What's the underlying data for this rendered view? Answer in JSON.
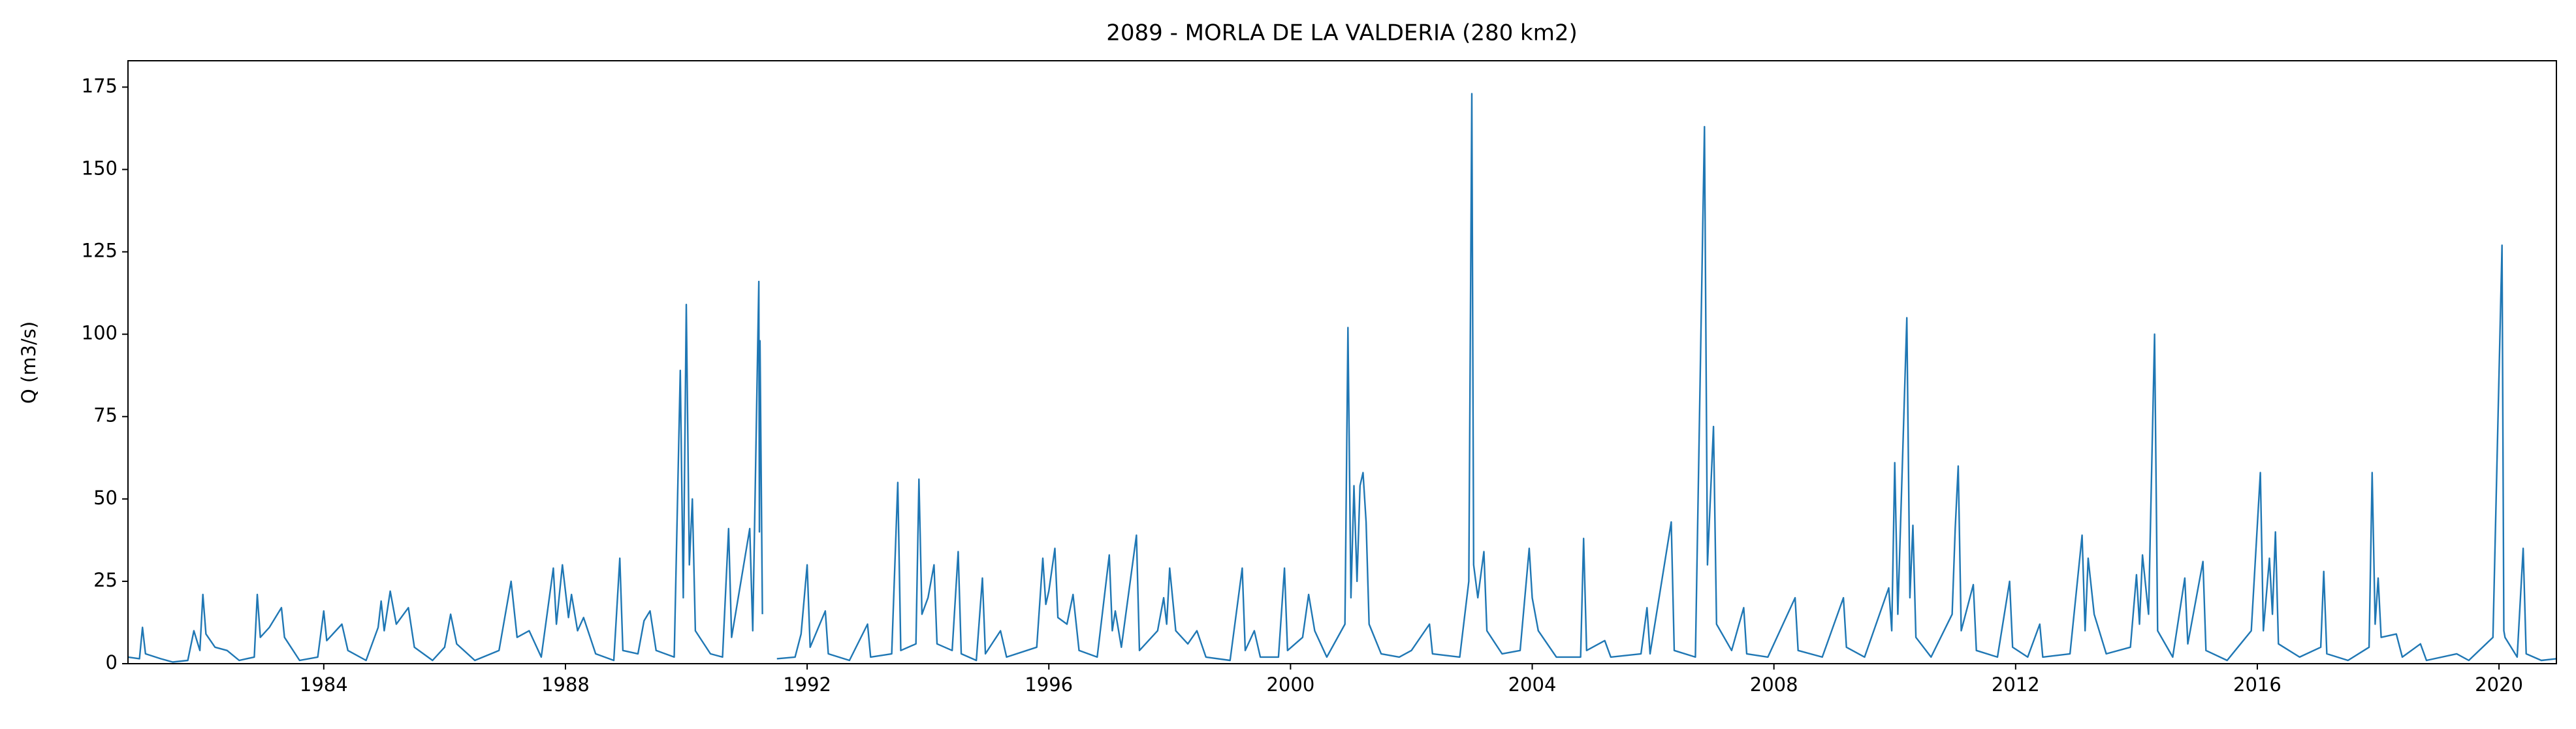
{
  "chart_data": {
    "type": "line",
    "title": "2089 - MORLA DE LA VALDERIA (280 km2)",
    "y_label": "Q (m3/s)",
    "color": "#1f77b4",
    "xlim": [
      1980.76,
      2020.95
    ],
    "xticks": [
      1984,
      1988,
      1992,
      1996,
      2000,
      2004,
      2008,
      2012,
      2016,
      2020
    ],
    "ylim": [
      0,
      183
    ],
    "yticks": [
      0,
      25,
      50,
      75,
      100,
      125,
      150,
      175
    ],
    "x": [
      1980.76,
      1980.95,
      1981.0,
      1981.05,
      1981.3,
      1981.5,
      1981.75,
      1981.85,
      1981.95,
      1982.0,
      1982.05,
      1982.2,
      1982.4,
      1982.6,
      1982.85,
      1982.9,
      1982.95,
      1983.1,
      1983.3,
      1983.35,
      1983.6,
      1983.9,
      1984.0,
      1984.05,
      1984.3,
      1984.4,
      1984.7,
      1984.9,
      1984.95,
      1985.0,
      1985.1,
      1985.2,
      1985.4,
      1985.5,
      1985.8,
      1986.0,
      1986.1,
      1986.2,
      1986.5,
      1986.9,
      1987.1,
      1987.2,
      1987.4,
      1987.6,
      1987.8,
      1987.85,
      1987.95,
      1988.05,
      1988.1,
      1988.2,
      1988.3,
      1988.5,
      1988.8,
      1988.9,
      1988.95,
      1989.2,
      1989.3,
      1989.4,
      1989.5,
      1989.8,
      1989.9,
      1989.95,
      1990.0,
      1990.05,
      1990.1,
      1990.15,
      1990.4,
      1990.6,
      1990.7,
      1990.75,
      1991.05,
      1991.1,
      1991.2,
      1991.21,
      1991.22,
      1991.26,
      1991.3,
      1991.5,
      1991.8,
      1991.9,
      1992.0,
      1992.05,
      1992.3,
      1992.35,
      1992.7,
      1993.0,
      1993.05,
      1993.4,
      1993.5,
      1993.55,
      1993.8,
      1993.85,
      1993.9,
      1994.0,
      1994.1,
      1994.15,
      1994.4,
      1994.5,
      1994.55,
      1994.8,
      1994.9,
      1994.95,
      1995.2,
      1995.3,
      1995.8,
      1995.9,
      1995.95,
      1996.0,
      1996.1,
      1996.15,
      1996.3,
      1996.4,
      1996.5,
      1996.8,
      1997.0,
      1997.05,
      1997.1,
      1997.2,
      1997.45,
      1997.5,
      1997.8,
      1997.9,
      1997.95,
      1998.0,
      1998.1,
      1998.3,
      1998.45,
      1998.6,
      1999.0,
      1999.2,
      1999.25,
      1999.4,
      1999.5,
      1999.8,
      1999.9,
      1999.95,
      2000.2,
      2000.3,
      2000.4,
      2000.6,
      2000.9,
      2000.95,
      2001.0,
      2001.05,
      2001.1,
      2001.15,
      2001.2,
      2001.25,
      2001.3,
      2001.5,
      2001.8,
      2002.0,
      2002.3,
      2002.35,
      2002.8,
      2002.95,
      2003.0,
      2003.03,
      2003.1,
      2003.2,
      2003.25,
      2003.5,
      2003.8,
      2003.95,
      2004.0,
      2004.1,
      2004.4,
      2004.8,
      2004.85,
      2004.9,
      2005.2,
      2005.3,
      2005.8,
      2005.9,
      2005.95,
      2006.3,
      2006.35,
      2006.7,
      2006.85,
      2006.9,
      2007.0,
      2007.05,
      2007.3,
      2007.5,
      2007.55,
      2007.9,
      2008.35,
      2008.4,
      2008.8,
      2009.15,
      2009.2,
      2009.5,
      2009.9,
      2009.95,
      2010.0,
      2010.05,
      2010.2,
      2010.25,
      2010.3,
      2010.35,
      2010.6,
      2010.95,
      2011.0,
      2011.05,
      2011.1,
      2011.3,
      2011.35,
      2011.7,
      2011.9,
      2011.95,
      2012.2,
      2012.4,
      2012.45,
      2012.9,
      2013.1,
      2013.15,
      2013.2,
      2013.3,
      2013.5,
      2013.9,
      2014.0,
      2014.05,
      2014.1,
      2014.2,
      2014.3,
      2014.35,
      2014.6,
      2014.8,
      2014.85,
      2015.1,
      2015.15,
      2015.5,
      2015.9,
      2016.05,
      2016.1,
      2016.2,
      2016.25,
      2016.3,
      2016.35,
      2016.7,
      2017.05,
      2017.1,
      2017.15,
      2017.5,
      2017.85,
      2017.9,
      2017.95,
      2018.0,
      2018.05,
      2018.3,
      2018.4,
      2018.7,
      2018.8,
      2019.3,
      2019.5,
      2019.9,
      2020.05,
      2020.08,
      2020.1,
      2020.3,
      2020.4,
      2020.45,
      2020.7,
      2020.95
    ],
    "values": [
      2,
      1.5,
      11,
      3,
      1.5,
      0.5,
      1,
      10,
      4,
      21,
      9,
      5,
      4,
      1,
      2,
      21,
      8,
      11,
      17,
      8,
      1,
      2,
      16,
      7,
      12,
      4,
      1,
      11,
      19,
      10,
      22,
      12,
      17,
      5,
      1,
      5,
      15,
      6,
      1,
      4,
      25,
      8,
      10,
      2,
      29,
      12,
      30,
      14,
      21,
      10,
      14,
      3,
      1,
      32,
      4,
      3,
      13,
      16,
      4,
      2,
      89,
      20,
      109,
      30,
      50,
      10,
      3,
      2,
      41,
      8,
      41,
      10,
      116,
      40,
      98,
      15,
      null,
      1.5,
      2,
      9,
      30,
      5,
      16,
      3,
      1,
      12,
      2,
      3,
      55,
      4,
      6,
      56,
      15,
      20,
      30,
      6,
      4,
      34,
      3,
      1,
      26,
      3,
      10,
      2,
      5,
      32,
      18,
      22,
      35,
      14,
      12,
      21,
      4,
      2,
      33,
      10,
      16,
      5,
      39,
      4,
      10,
      20,
      12,
      29,
      10,
      6,
      10,
      2,
      1,
      29,
      4,
      10,
      2,
      2,
      29,
      4,
      8,
      21,
      10,
      2,
      12,
      102,
      20,
      54,
      25,
      54,
      58,
      43,
      12,
      3,
      2,
      4,
      12,
      3,
      2,
      25,
      173,
      30,
      20,
      34,
      10,
      3,
      4,
      35,
      20,
      10,
      2,
      2,
      38,
      4,
      7,
      2,
      3,
      17,
      3,
      43,
      4,
      2,
      163,
      30,
      72,
      12,
      4,
      17,
      3,
      2,
      20,
      4,
      2,
      20,
      5,
      2,
      23,
      10,
      61,
      15,
      105,
      20,
      42,
      8,
      2,
      15,
      41,
      60,
      10,
      24,
      4,
      2,
      25,
      5,
      2,
      12,
      2,
      3,
      39,
      10,
      32,
      15,
      3,
      5,
      27,
      12,
      33,
      15,
      100,
      10,
      2,
      26,
      6,
      31,
      4,
      1,
      10,
      58,
      10,
      32,
      15,
      40,
      6,
      2,
      5,
      28,
      3,
      1,
      5,
      58,
      12,
      26,
      8,
      9,
      2,
      6,
      1,
      3,
      1,
      8,
      127,
      10,
      8,
      2,
      35,
      3,
      1,
      1.5
    ]
  }
}
